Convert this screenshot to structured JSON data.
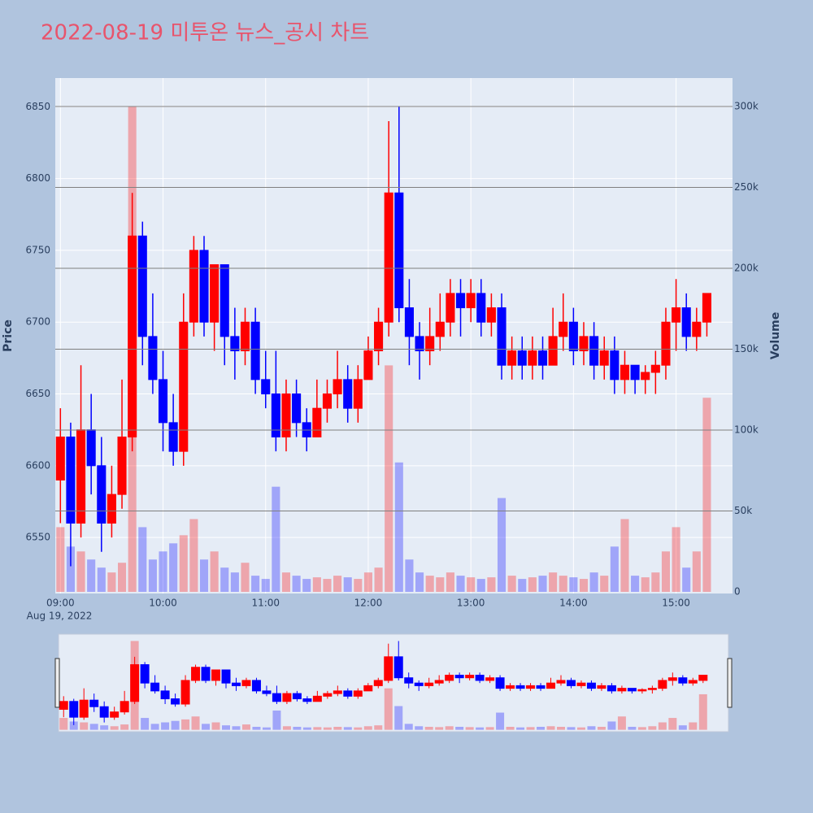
{
  "chart_data": {
    "type": "candlestick",
    "title": "2022-08-19 미투온 뉴스_공시 차트",
    "ylabel": "Price",
    "y2label": "Volume",
    "x_date_label": "Aug 19, 2022",
    "increasing_color": "#ff0000",
    "decreasing_color": "#0000ff",
    "rangeslider": true,
    "x": [
      "09:00",
      "09:06",
      "09:12",
      "09:18",
      "09:24",
      "09:30",
      "09:36",
      "09:42",
      "09:48",
      "09:54",
      "10:00",
      "10:06",
      "10:12",
      "10:18",
      "10:24",
      "10:30",
      "10:36",
      "10:42",
      "10:48",
      "10:54",
      "11:00",
      "11:06",
      "11:12",
      "11:18",
      "11:24",
      "11:30",
      "11:36",
      "11:42",
      "11:48",
      "11:54",
      "12:00",
      "12:06",
      "12:12",
      "12:18",
      "12:24",
      "12:30",
      "12:36",
      "12:42",
      "12:48",
      "12:54",
      "13:00",
      "13:06",
      "13:12",
      "13:18",
      "13:24",
      "13:30",
      "13:36",
      "13:42",
      "13:48",
      "13:54",
      "14:00",
      "14:06",
      "14:12",
      "14:18",
      "14:24",
      "14:30",
      "14:36",
      "14:42",
      "14:48",
      "14:54",
      "15:00",
      "15:06",
      "15:12",
      "15:18"
    ],
    "open": [
      6590,
      6620,
      6560,
      6625,
      6600,
      6560,
      6580,
      6620,
      6760,
      6690,
      6660,
      6630,
      6610,
      6700,
      6750,
      6700,
      6740,
      6690,
      6680,
      6700,
      6660,
      6650,
      6620,
      6650,
      6630,
      6620,
      6640,
      6650,
      6660,
      6640,
      6660,
      6680,
      6700,
      6790,
      6710,
      6690,
      6680,
      6690,
      6700,
      6720,
      6710,
      6720,
      6700,
      6710,
      6670,
      6680,
      6670,
      6680,
      6670,
      6690,
      6700,
      6680,
      6690,
      6670,
      6680,
      6660,
      6670,
      6660,
      6665,
      6670,
      6700,
      6710,
      6690,
      6700
    ],
    "high": [
      6640,
      6630,
      6670,
      6650,
      6620,
      6600,
      6660,
      6790,
      6770,
      6720,
      6680,
      6650,
      6720,
      6760,
      6760,
      6740,
      6740,
      6710,
      6710,
      6710,
      6680,
      6680,
      6660,
      6660,
      6640,
      6660,
      6660,
      6680,
      6670,
      6670,
      6690,
      6710,
      6840,
      6850,
      6730,
      6700,
      6710,
      6720,
      6730,
      6730,
      6730,
      6730,
      6720,
      6720,
      6690,
      6690,
      6690,
      6690,
      6710,
      6720,
      6710,
      6700,
      6700,
      6690,
      6690,
      6680,
      6670,
      6670,
      6680,
      6710,
      6730,
      6720,
      6710,
      6720
    ],
    "low": [
      6560,
      6530,
      6550,
      6580,
      6540,
      6550,
      6570,
      6610,
      6670,
      6650,
      6610,
      6600,
      6600,
      6690,
      6690,
      6680,
      6670,
      6660,
      6670,
      6650,
      6640,
      6610,
      6610,
      6620,
      6610,
      6620,
      6630,
      6640,
      6630,
      6630,
      6660,
      6670,
      6690,
      6700,
      6670,
      6660,
      6670,
      6680,
      6690,
      6690,
      6700,
      6690,
      6690,
      6660,
      6660,
      6660,
      6660,
      6660,
      6670,
      6680,
      6670,
      6670,
      6660,
      6660,
      6650,
      6650,
      6650,
      6650,
      6650,
      6660,
      6680,
      6680,
      6680,
      6690
    ],
    "close": [
      6620,
      6560,
      6625,
      6600,
      6560,
      6580,
      6620,
      6760,
      6690,
      6660,
      6630,
      6610,
      6700,
      6750,
      6700,
      6740,
      6690,
      6680,
      6700,
      6660,
      6650,
      6620,
      6650,
      6630,
      6620,
      6640,
      6650,
      6660,
      6640,
      6660,
      6680,
      6700,
      6790,
      6710,
      6690,
      6680,
      6690,
      6700,
      6720,
      6710,
      6720,
      6700,
      6710,
      6670,
      6680,
      6670,
      6680,
      6670,
      6690,
      6700,
      6680,
      6690,
      6670,
      6680,
      6660,
      6670,
      6660,
      6665,
      6670,
      6700,
      6710,
      6690,
      6700,
      6720
    ],
    "volume": [
      40000,
      28000,
      25000,
      20000,
      15000,
      12000,
      18000,
      300000,
      40000,
      20000,
      25000,
      30000,
      35000,
      45000,
      20000,
      25000,
      15000,
      12000,
      18000,
      10000,
      8000,
      65000,
      12000,
      10000,
      8000,
      9000,
      8000,
      10000,
      9000,
      8000,
      12000,
      15000,
      140000,
      80000,
      20000,
      12000,
      10000,
      9000,
      12000,
      10000,
      9000,
      8000,
      9000,
      58000,
      10000,
      8000,
      9000,
      10000,
      12000,
      10000,
      9000,
      8000,
      12000,
      10000,
      28000,
      45000,
      10000,
      9000,
      12000,
      25000,
      40000,
      15000,
      25000,
      120000
    ],
    "xlim": [
      "08:57",
      "15:33"
    ],
    "xticks": [
      "09:00",
      "10:00",
      "11:00",
      "12:00",
      "13:00",
      "14:00",
      "15:00"
    ],
    "ylim": [
      6511,
      6870
    ],
    "yticks": [
      6550,
      6600,
      6650,
      6700,
      6750,
      6800,
      6850
    ],
    "y2lim": [
      -1000,
      317600
    ],
    "y2ticks": [
      0,
      {
        "value": 50000,
        "label": "50k"
      },
      {
        "value": 100000,
        "label": "100k"
      },
      {
        "value": 150000,
        "label": "150k"
      },
      {
        "value": 200000,
        "label": "200k"
      },
      {
        "value": 250000,
        "label": "250k"
      },
      {
        "value": 300000,
        "label": "300k"
      }
    ]
  }
}
